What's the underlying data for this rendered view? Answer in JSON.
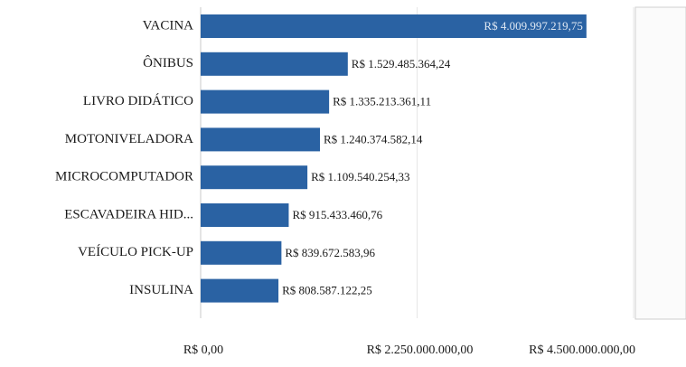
{
  "chart_data": {
    "type": "bar",
    "orientation": "horizontal",
    "categories": [
      "VACINA",
      "ÔNIBUS",
      "LIVRO DIDÁTICO",
      "MOTONIVELADORA",
      "MICROCOMPUTADOR",
      "ESCAVADEIRA HID...",
      "VEÍCULO PICK-UP",
      "INSULINA"
    ],
    "values": [
      4009997219.75,
      1529485364.24,
      1335213361.11,
      1240374582.14,
      1109540254.33,
      915433460.76,
      839672583.96,
      808587122.25
    ],
    "value_labels": [
      "R$ 4.009.997.219,75",
      "R$ 1.529.485.364,24",
      "R$ 1.335.213.361,11",
      "R$ 1.240.374.582,14",
      "R$ 1.109.540.254,33",
      "R$ 915.433.460,76",
      "R$ 839.672.583,96",
      "R$ 808.587.122,25"
    ],
    "color": "#2a62a3",
    "xlim": [
      0,
      4500000000
    ],
    "xticks": [
      {
        "value": 0,
        "label": "R$ 0,00"
      },
      {
        "value": 2250000000,
        "label": "R$ 2.250.000.000,00"
      },
      {
        "value": 4500000000,
        "label": "R$ 4.500.000.000,00"
      }
    ],
    "grid": true
  }
}
